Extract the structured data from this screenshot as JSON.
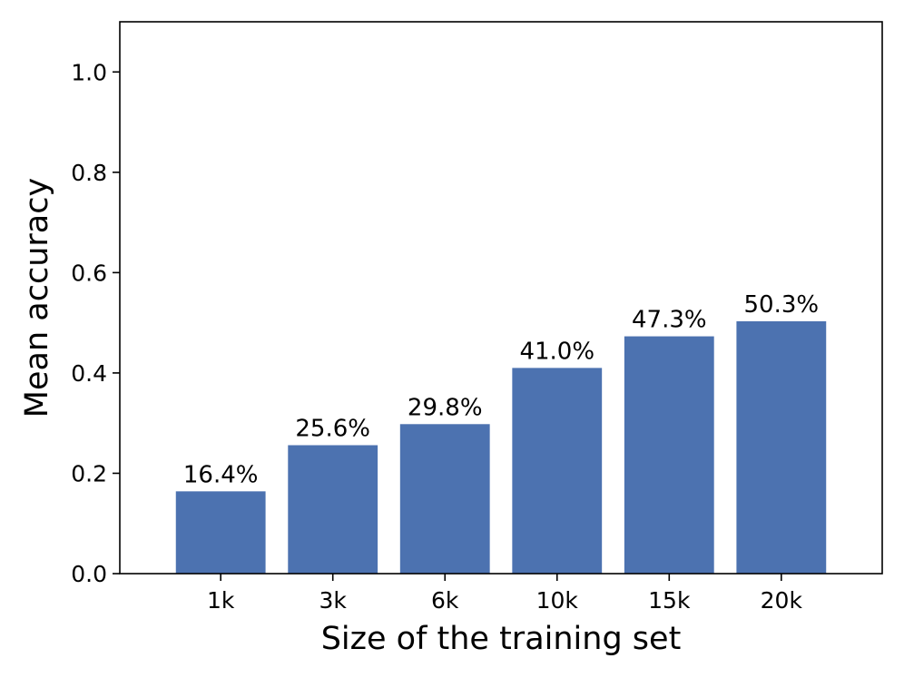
{
  "chart_data": {
    "type": "bar",
    "categories": [
      "1k",
      "3k",
      "6k",
      "10k",
      "15k",
      "20k"
    ],
    "values": [
      0.164,
      0.256,
      0.298,
      0.41,
      0.473,
      0.503
    ],
    "data_labels": [
      "16.4%",
      "25.6%",
      "29.8%",
      "41.0%",
      "47.3%",
      "50.3%"
    ],
    "title": "",
    "xlabel": "Size of the training set",
    "ylabel": "Mean accuracy",
    "ylim": [
      0,
      1.1
    ],
    "yticks": [
      0.0,
      0.2,
      0.4,
      0.6,
      0.8,
      1.0
    ],
    "ytick_labels": [
      "0.0",
      "0.2",
      "0.4",
      "0.6",
      "0.8",
      "1.0"
    ],
    "grid": false,
    "legend": "none",
    "bar_color": "#4c72b0"
  }
}
